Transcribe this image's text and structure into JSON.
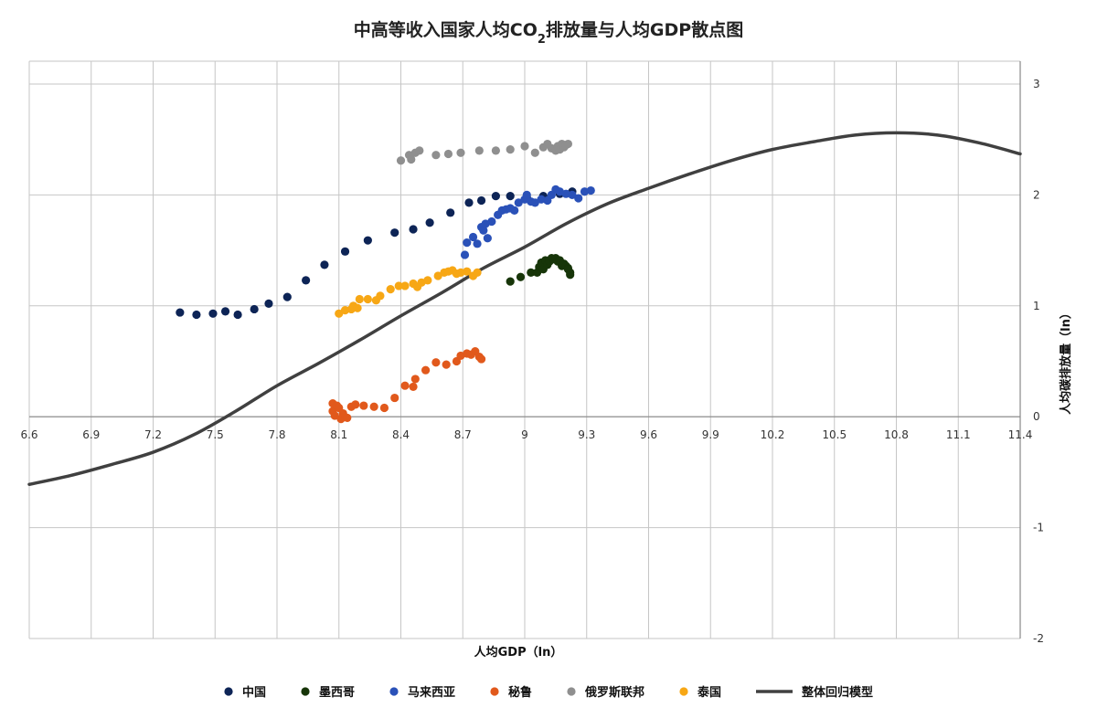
{
  "chart_data": {
    "type": "scatter",
    "title": "中高等收入国家人均CO₂排放量与人均GDP散点图",
    "title_parts": [
      "中高等收入国家人均CO",
      "2",
      "排放量与人均GDP散点图"
    ],
    "xlabel": "人均GDP（ln）",
    "ylabel": "人均碳排放量（ln）",
    "xlim": [
      6.6,
      11.4
    ],
    "ylim": [
      -2,
      3
    ],
    "x_ticks": [
      "6.6",
      "6.9",
      "7.2",
      "7.5",
      "7.8",
      "8.1",
      "8.4",
      "8.7",
      "9",
      "9.3",
      "9.6",
      "9.9",
      "10.2",
      "10.5",
      "10.8",
      "11.1",
      "11.4"
    ],
    "y_ticks": [
      "-2",
      "-1",
      "0",
      "1",
      "2",
      "3"
    ],
    "grid": true,
    "legend_position": "bottom",
    "series": [
      {
        "name": "中国",
        "color": "#0d2456",
        "points": [
          [
            7.33,
            0.94
          ],
          [
            7.41,
            0.92
          ],
          [
            7.49,
            0.93
          ],
          [
            7.55,
            0.95
          ],
          [
            7.61,
            0.92
          ],
          [
            7.69,
            0.97
          ],
          [
            7.76,
            1.02
          ],
          [
            7.85,
            1.08
          ],
          [
            7.94,
            1.23
          ],
          [
            8.03,
            1.37
          ],
          [
            8.13,
            1.49
          ],
          [
            8.24,
            1.59
          ],
          [
            8.37,
            1.66
          ],
          [
            8.46,
            1.69
          ],
          [
            8.54,
            1.75
          ],
          [
            8.64,
            1.84
          ],
          [
            8.73,
            1.93
          ],
          [
            8.79,
            1.95
          ],
          [
            8.86,
            1.99
          ],
          [
            8.93,
            1.99
          ],
          [
            9.01,
            1.98
          ],
          [
            9.09,
            1.99
          ],
          [
            9.17,
            2.01
          ],
          [
            9.23,
            2.03
          ]
        ]
      },
      {
        "name": "墨西哥",
        "color": "#173509",
        "points": [
          [
            8.93,
            1.22
          ],
          [
            8.98,
            1.26
          ],
          [
            9.03,
            1.3
          ],
          [
            9.06,
            1.3
          ],
          [
            9.07,
            1.35
          ],
          [
            9.08,
            1.39
          ],
          [
            9.09,
            1.33
          ],
          [
            9.1,
            1.41
          ],
          [
            9.11,
            1.37
          ],
          [
            9.12,
            1.4
          ],
          [
            9.13,
            1.43
          ],
          [
            9.14,
            1.42
          ],
          [
            9.15,
            1.43
          ],
          [
            9.16,
            1.4
          ],
          [
            9.17,
            1.41
          ],
          [
            9.18,
            1.36
          ],
          [
            9.19,
            1.38
          ],
          [
            9.2,
            1.36
          ],
          [
            9.21,
            1.34
          ],
          [
            9.22,
            1.3
          ],
          [
            9.22,
            1.28
          ],
          [
            9.21,
            1.33
          ]
        ]
      },
      {
        "name": "马来西亚",
        "color": "#2a51b8",
        "points": [
          [
            8.71,
            1.46
          ],
          [
            8.72,
            1.57
          ],
          [
            8.75,
            1.62
          ],
          [
            8.77,
            1.56
          ],
          [
            8.79,
            1.71
          ],
          [
            8.8,
            1.68
          ],
          [
            8.81,
            1.74
          ],
          [
            8.82,
            1.61
          ],
          [
            8.84,
            1.76
          ],
          [
            8.87,
            1.82
          ],
          [
            8.89,
            1.86
          ],
          [
            8.91,
            1.87
          ],
          [
            8.93,
            1.88
          ],
          [
            8.95,
            1.86
          ],
          [
            8.97,
            1.93
          ],
          [
            9.0,
            1.96
          ],
          [
            9.01,
            2.0
          ],
          [
            9.03,
            1.94
          ],
          [
            9.05,
            1.93
          ],
          [
            9.08,
            1.96
          ],
          [
            9.11,
            1.95
          ],
          [
            9.13,
            2.0
          ],
          [
            9.15,
            2.05
          ],
          [
            9.17,
            2.03
          ],
          [
            9.2,
            2.01
          ],
          [
            9.23,
            2.0
          ],
          [
            9.26,
            1.97
          ],
          [
            9.29,
            2.03
          ],
          [
            9.32,
            2.04
          ]
        ]
      },
      {
        "name": "秘鲁",
        "color": "#e1591c",
        "points": [
          [
            8.07,
            0.05
          ],
          [
            8.07,
            0.12
          ],
          [
            8.08,
            0.01
          ],
          [
            8.09,
            0.1
          ],
          [
            8.1,
            0.08
          ],
          [
            8.11,
            -0.02
          ],
          [
            8.12,
            0.03
          ],
          [
            8.14,
            -0.01
          ],
          [
            8.16,
            0.09
          ],
          [
            8.18,
            0.11
          ],
          [
            8.22,
            0.1
          ],
          [
            8.27,
            0.09
          ],
          [
            8.32,
            0.08
          ],
          [
            8.37,
            0.17
          ],
          [
            8.42,
            0.28
          ],
          [
            8.46,
            0.27
          ],
          [
            8.47,
            0.34
          ],
          [
            8.52,
            0.42
          ],
          [
            8.57,
            0.49
          ],
          [
            8.62,
            0.47
          ],
          [
            8.67,
            0.5
          ],
          [
            8.69,
            0.55
          ],
          [
            8.72,
            0.57
          ],
          [
            8.74,
            0.56
          ],
          [
            8.76,
            0.59
          ],
          [
            8.78,
            0.54
          ],
          [
            8.79,
            0.52
          ]
        ]
      },
      {
        "name": "俄罗斯联邦",
        "color": "#8f8f8f",
        "points": [
          [
            8.4,
            2.31
          ],
          [
            8.44,
            2.36
          ],
          [
            8.45,
            2.32
          ],
          [
            8.47,
            2.38
          ],
          [
            8.49,
            2.4
          ],
          [
            8.57,
            2.36
          ],
          [
            8.63,
            2.37
          ],
          [
            8.69,
            2.38
          ],
          [
            8.78,
            2.4
          ],
          [
            8.86,
            2.4
          ],
          [
            8.93,
            2.41
          ],
          [
            9.0,
            2.44
          ],
          [
            9.05,
            2.38
          ],
          [
            9.09,
            2.43
          ],
          [
            9.11,
            2.46
          ],
          [
            9.13,
            2.42
          ],
          [
            9.15,
            2.4
          ],
          [
            9.16,
            2.44
          ],
          [
            9.17,
            2.41
          ],
          [
            9.18,
            2.46
          ],
          [
            9.19,
            2.43
          ],
          [
            9.2,
            2.45
          ],
          [
            9.21,
            2.46
          ]
        ]
      },
      {
        "name": "泰国",
        "color": "#f7a715",
        "points": [
          [
            8.1,
            0.93
          ],
          [
            8.13,
            0.96
          ],
          [
            8.16,
            0.97
          ],
          [
            8.17,
            1.0
          ],
          [
            8.19,
            0.98
          ],
          [
            8.2,
            1.06
          ],
          [
            8.24,
            1.06
          ],
          [
            8.28,
            1.05
          ],
          [
            8.3,
            1.09
          ],
          [
            8.35,
            1.15
          ],
          [
            8.39,
            1.18
          ],
          [
            8.42,
            1.18
          ],
          [
            8.46,
            1.2
          ],
          [
            8.48,
            1.17
          ],
          [
            8.5,
            1.21
          ],
          [
            8.53,
            1.23
          ],
          [
            8.58,
            1.27
          ],
          [
            8.61,
            1.3
          ],
          [
            8.63,
            1.31
          ],
          [
            8.65,
            1.32
          ],
          [
            8.67,
            1.29
          ],
          [
            8.69,
            1.3
          ],
          [
            8.72,
            1.31
          ],
          [
            8.75,
            1.27
          ],
          [
            8.77,
            1.3
          ]
        ]
      },
      {
        "name": "整体回归模型",
        "type": "line",
        "color": "#404040",
        "points": [
          [
            6.6,
            -0.61
          ],
          [
            6.8,
            -0.53
          ],
          [
            7.0,
            -0.43
          ],
          [
            7.2,
            -0.32
          ],
          [
            7.4,
            -0.16
          ],
          [
            7.6,
            0.05
          ],
          [
            7.8,
            0.28
          ],
          [
            8.0,
            0.48
          ],
          [
            8.2,
            0.69
          ],
          [
            8.4,
            0.91
          ],
          [
            8.6,
            1.12
          ],
          [
            8.8,
            1.34
          ],
          [
            9.0,
            1.53
          ],
          [
            9.2,
            1.74
          ],
          [
            9.4,
            1.92
          ],
          [
            9.6,
            2.06
          ],
          [
            9.8,
            2.19
          ],
          [
            10.0,
            2.31
          ],
          [
            10.2,
            2.41
          ],
          [
            10.4,
            2.48
          ],
          [
            10.6,
            2.54
          ],
          [
            10.8,
            2.56
          ],
          [
            11.0,
            2.54
          ],
          [
            11.2,
            2.47
          ],
          [
            11.4,
            2.37
          ]
        ]
      }
    ]
  }
}
